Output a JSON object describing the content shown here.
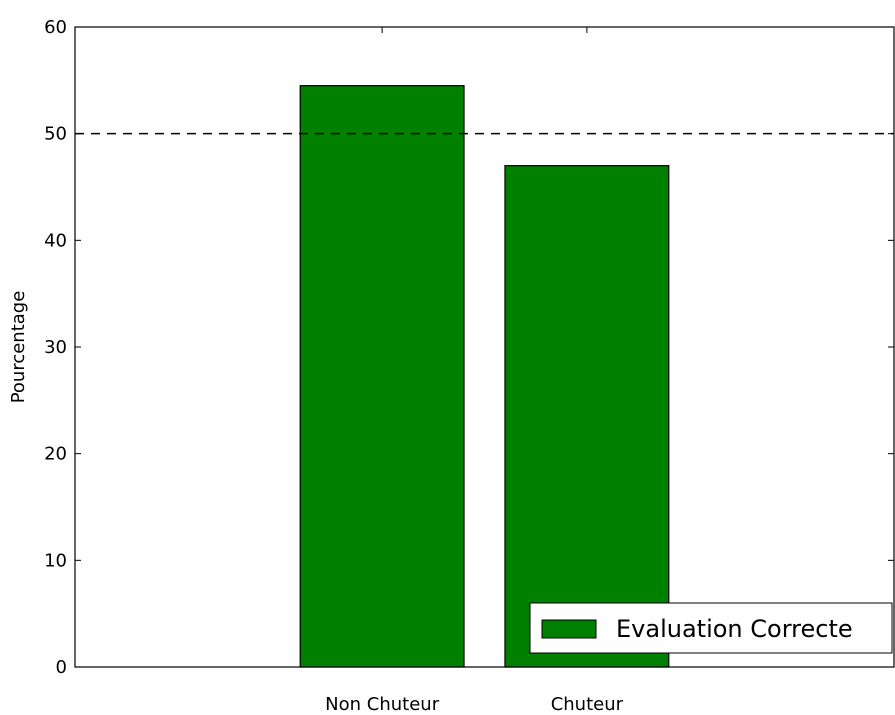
{
  "chart_data": {
    "type": "bar",
    "categories": [
      "Non Chuteur",
      "Chuteur"
    ],
    "series": [
      {
        "name": "Evaluation Correcte",
        "values": [
          54.5,
          47.0
        ],
        "color": "#008000"
      }
    ],
    "ylabel": "Pourcentage",
    "xlabel": "",
    "title": "",
    "ylim": [
      0,
      60
    ],
    "yticks": [
      0,
      10,
      20,
      30,
      40,
      50,
      60
    ],
    "reference_line": {
      "y": 50,
      "style": "dashed",
      "color": "#000000"
    },
    "legend": {
      "position": "bottom-right",
      "entries": [
        "Evaluation Correcte"
      ]
    },
    "grid": false
  }
}
